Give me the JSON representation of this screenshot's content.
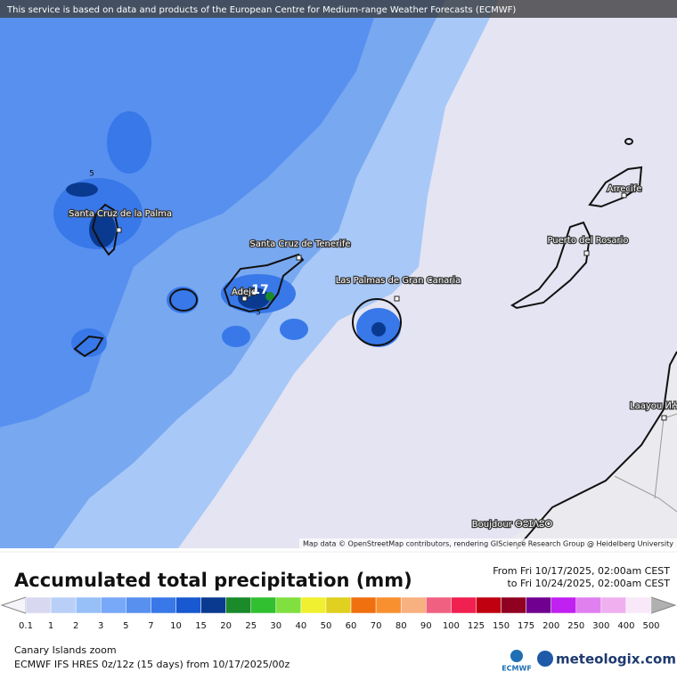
{
  "banner": "This service is based on data and products of the European Centre for Medium-range Weather Forecasts (ECMWF)",
  "map": {
    "places": [
      "Santa Cruz de la Palma",
      "Santa Cruz de Tenerife",
      "Adeje",
      "Las Palmas de Gran Canaria",
      "Puerto del Rosario",
      "Arrecife",
      "Laayou ⵍⵄⵢⵓⵏ",
      "Boujdour ⴱⵓⵊⴷⵓⵔ"
    ],
    "contour_labels": [
      "5",
      "17",
      "5"
    ],
    "attribution": "Map data © OpenStreetMap contributors, rendering GIScience Research Group @ Heidelberg University"
  },
  "legend": {
    "title": "Accumulated total precipitation (mm)",
    "from": "From Fri 10/17/2025, 02:00am CEST",
    "to": "to Fri 10/24/2025, 02:00am CEST",
    "labels": [
      0.1,
      1,
      2,
      3,
      5,
      7,
      10,
      15,
      20,
      25,
      30,
      40,
      50,
      60,
      70,
      80,
      90,
      100,
      125,
      150,
      175,
      200,
      250,
      300,
      400,
      500
    ],
    "colors": [
      "#d8d8f0",
      "#b8d0f8",
      "#98c0f8",
      "#78a8f8",
      "#5890f0",
      "#3878e8",
      "#1858d0",
      "#0a3a90",
      "#1a8a2a",
      "#30c030",
      "#80e040",
      "#f0f030",
      "#e0d020",
      "#f07010",
      "#f89030",
      "#f8b080",
      "#f06080",
      "#f02050",
      "#c00010",
      "#900020",
      "#700090",
      "#c020f0",
      "#e080f0",
      "#f0b0f0",
      "#f8e8f8"
    ]
  },
  "footer": {
    "region": "Canary Islands zoom",
    "model": "ECMWF IFS HRES 0z/12z (15 days) from  10/17/2025/00z",
    "ecmwf": "ECMWF",
    "brand": "meteologix.com"
  }
}
